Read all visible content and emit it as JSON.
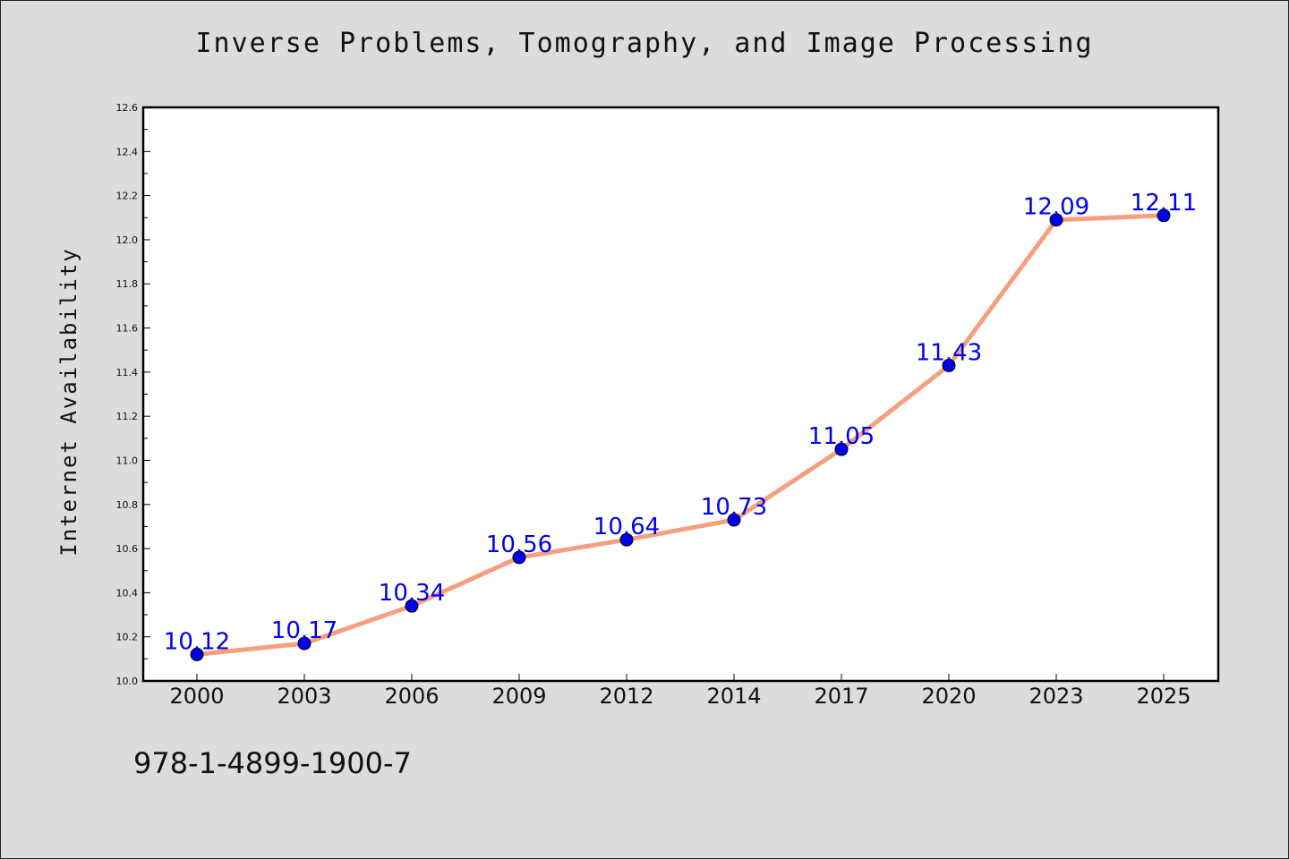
{
  "chart_data": {
    "type": "line",
    "title": "Inverse Problems, Tomography, and Image Processing",
    "xlabel": "",
    "ylabel": "Internet Availability",
    "categories": [
      "2000",
      "2003",
      "2006",
      "2009",
      "2012",
      "2014",
      "2017",
      "2020",
      "2023",
      "2025"
    ],
    "series": [
      {
        "values": [
          10.12,
          10.17,
          10.34,
          10.56,
          10.64,
          10.73,
          11.05,
          11.43,
          12.09,
          12.11
        ],
        "labels": [
          "10.12",
          "10.17",
          "10.34",
          "10.56",
          "10.64",
          "10.73",
          "11.05",
          "11.43",
          "12.09",
          "12.11"
        ]
      }
    ],
    "ylim": [
      10.0,
      12.6
    ],
    "yticks": [
      "10.0",
      "10.2",
      "10.4",
      "10.6",
      "10.8",
      "11.0",
      "11.2",
      "11.4",
      "11.6",
      "11.8",
      "12.0",
      "12.2",
      "12.4",
      "12.6"
    ],
    "grid": false,
    "colors": {
      "line": "#f4a07e",
      "marker": "#0000ee",
      "data_label": "#0000ee",
      "plot_background": "#ffffff",
      "page_background": "#dcdcdc"
    }
  },
  "footer": {
    "isbn": "978-1-4899-1900-7"
  }
}
